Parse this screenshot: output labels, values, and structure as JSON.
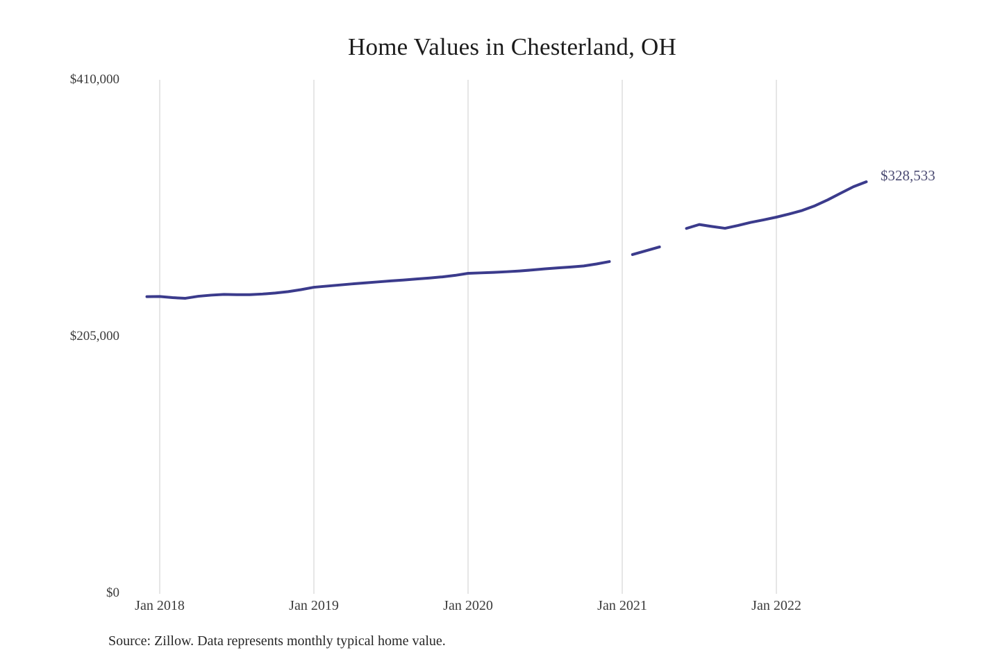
{
  "page": {
    "title": "Home Values in Chesterland, OH",
    "end_value_label": "$328,533",
    "source_note": "Source: Zillow. Data represents monthly typical home value."
  },
  "colors": {
    "background": "#ffffff",
    "line": "#3b3b8c",
    "grid": "#cccccc",
    "title_text": "#1c1c1c",
    "axis_text": "#3b3b3b",
    "annotation_text": "#4b4b72"
  },
  "chart_data": {
    "type": "line",
    "title": "Home Values in Chesterland, OH",
    "series_name": "Monthly typical home value",
    "unit": "USD",
    "month_zero": "Jan 2018",
    "final_value": 328533,
    "grid": true,
    "x_axis": {
      "ticks": [
        {
          "label": "Jan 2018",
          "month": 0
        },
        {
          "label": "Jan 2019",
          "month": 12
        },
        {
          "label": "Jan 2020",
          "month": 24
        },
        {
          "label": "Jan 2021",
          "month": 36
        },
        {
          "label": "Jan 2022",
          "month": 48
        }
      ]
    },
    "y_axis": {
      "min": 0,
      "max": 410000,
      "ticks": [
        {
          "label": "$0",
          "value": 0
        },
        {
          "label": "$205,000",
          "value": 205000
        },
        {
          "label": "$410,000",
          "value": 410000
        }
      ]
    },
    "segments": [
      {
        "style": "solid",
        "months": [
          -1,
          0,
          1,
          2,
          3,
          4,
          5,
          6,
          7,
          8,
          9,
          10,
          11,
          12,
          13,
          14,
          15,
          16,
          17,
          18,
          19,
          20,
          21,
          22,
          23,
          24,
          25,
          26,
          27,
          28,
          29,
          30,
          31,
          32,
          33,
          34,
          35
        ],
        "values": [
          236800,
          236900,
          236000,
          235500,
          237100,
          238000,
          238600,
          238400,
          238400,
          238900,
          239700,
          240800,
          242400,
          244300,
          245200,
          246100,
          247000,
          247800,
          248600,
          249400,
          250100,
          250900,
          251700,
          252600,
          253800,
          255400,
          255800,
          256200,
          256700,
          257300,
          258100,
          259000,
          259800,
          260500,
          261300,
          262900,
          264800
        ]
      },
      {
        "style": "dash",
        "note": "interpolated gap segment",
        "months": [
          36.8,
          38.9
        ],
        "values": [
          270400,
          276500
        ]
      },
      {
        "style": "solid",
        "months": [
          41,
          42,
          43,
          44,
          45,
          46,
          47,
          48,
          49,
          50,
          51,
          52,
          53,
          54,
          55
        ],
        "values": [
          291300,
          294400,
          292800,
          291400,
          293600,
          296100,
          298100,
          300300,
          302800,
          305600,
          309400,
          314100,
          319400,
          324600,
          328533
        ]
      }
    ]
  }
}
